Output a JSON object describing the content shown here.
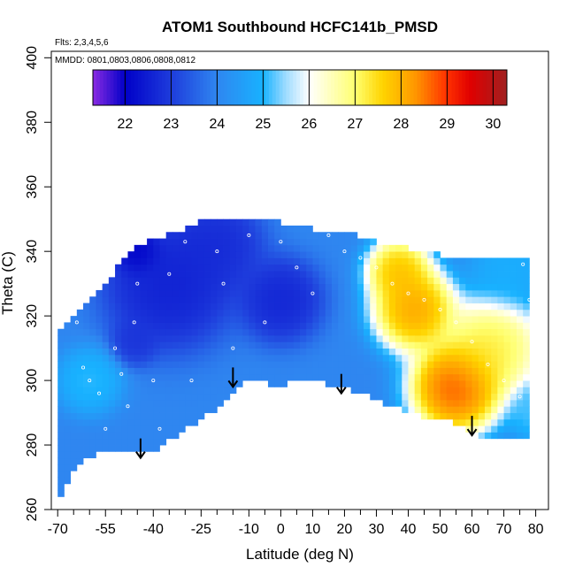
{
  "chart_data": {
    "type": "heatmap",
    "title": "ATOM1 Southbound HCFC141b_PMSD",
    "subtitle_flights": "Flts: 2,3,4,5,6",
    "subtitle_dates": "MMDD: 0801,0803,0806,0808,0812",
    "xlabel": "Latitude (deg N)",
    "ylabel": "Theta (C)",
    "xlim": [
      -72,
      84
    ],
    "ylim": [
      260,
      402
    ],
    "x_ticks": [
      -70,
      -55,
      -40,
      -25,
      -10,
      0,
      10,
      20,
      30,
      40,
      50,
      60,
      70,
      80
    ],
    "x_tick_labels": [
      "-70",
      "-55",
      "-40",
      "-25",
      "-10",
      "0",
      "10",
      "20",
      "30",
      "40",
      "50",
      "60",
      "70",
      "80"
    ],
    "x_minor_ticks": [
      -65,
      -60,
      -50,
      -45,
      -35,
      -30,
      -20,
      -15,
      -5,
      5,
      15,
      25,
      35,
      45,
      55,
      65,
      75
    ],
    "y_ticks": [
      260,
      280,
      300,
      320,
      340,
      360,
      380,
      400
    ],
    "y_tick_labels": [
      "260",
      "280",
      "300",
      "320",
      "340",
      "360",
      "380",
      "400"
    ],
    "colorbar": {
      "min": 21.3,
      "max": 30.3,
      "ticks": [
        22,
        23,
        24,
        25,
        26,
        27,
        28,
        29,
        30
      ],
      "tick_labels": [
        "22",
        "23",
        "24",
        "25",
        "26",
        "27",
        "28",
        "29",
        "30"
      ]
    },
    "color_stops": [
      {
        "v": 21.3,
        "c": "#8a2be2"
      },
      {
        "v": 22.0,
        "c": "#0000c8"
      },
      {
        "v": 23.0,
        "c": "#1e3cdc"
      },
      {
        "v": 24.0,
        "c": "#2f86f0"
      },
      {
        "v": 25.0,
        "c": "#18b2ff"
      },
      {
        "v": 25.5,
        "c": "#a0dcff"
      },
      {
        "v": 26.0,
        "c": "#ffffff"
      },
      {
        "v": 27.0,
        "c": "#ffff70"
      },
      {
        "v": 27.6,
        "c": "#ffd400"
      },
      {
        "v": 28.3,
        "c": "#ff9800"
      },
      {
        "v": 29.0,
        "c": "#ff3000"
      },
      {
        "v": 29.5,
        "c": "#e00000"
      },
      {
        "v": 30.3,
        "c": "#a02020"
      }
    ],
    "field_centers": [
      {
        "lat": -35,
        "theta": 330,
        "value": 22.4,
        "radius": 14
      },
      {
        "lat": -20,
        "theta": 342,
        "value": 22.6,
        "radius": 10
      },
      {
        "lat": 0,
        "theta": 325,
        "value": 22.5,
        "radius": 9
      },
      {
        "lat": -45,
        "theta": 340,
        "value": 21.8,
        "radius": 5
      },
      {
        "lat": -46,
        "theta": 312,
        "value": 22.8,
        "radius": 5
      },
      {
        "lat": -60,
        "theta": 300,
        "value": 25.2,
        "radius": 7
      },
      {
        "lat": 37,
        "theta": 334,
        "value": 28.2,
        "radius": 7
      },
      {
        "lat": 42,
        "theta": 322,
        "value": 28.6,
        "radius": 9
      },
      {
        "lat": 55,
        "theta": 298,
        "value": 29.3,
        "radius": 10
      },
      {
        "lat": 66,
        "theta": 310,
        "value": 27.6,
        "radius": 11
      },
      {
        "lat": 72,
        "theta": 335,
        "value": 25.0,
        "radius": 9
      },
      {
        "lat": 80,
        "theta": 290,
        "value": 25.3,
        "radius": 6
      }
    ],
    "field_default": 24.0,
    "region_top": [
      {
        "lat": -70,
        "theta": 315
      },
      {
        "lat": -65,
        "theta": 320
      },
      {
        "lat": -55,
        "theta": 330
      },
      {
        "lat": -48,
        "theta": 340
      },
      {
        "lat": -42,
        "theta": 343
      },
      {
        "lat": -35,
        "theta": 345
      },
      {
        "lat": -25,
        "theta": 349
      },
      {
        "lat": -10,
        "theta": 350
      },
      {
        "lat": 0,
        "theta": 349
      },
      {
        "lat": 10,
        "theta": 347
      },
      {
        "lat": 20,
        "theta": 346
      },
      {
        "lat": 30,
        "theta": 343
      },
      {
        "lat": 40,
        "theta": 341
      },
      {
        "lat": 55,
        "theta": 338
      },
      {
        "lat": 65,
        "theta": 338
      },
      {
        "lat": 78,
        "theta": 338
      }
    ],
    "region_bottom": [
      {
        "lat": -69,
        "theta": 264
      },
      {
        "lat": -63,
        "theta": 275
      },
      {
        "lat": -55,
        "theta": 278
      },
      {
        "lat": -48,
        "theta": 278
      },
      {
        "lat": -42,
        "theta": 277
      },
      {
        "lat": -33,
        "theta": 283
      },
      {
        "lat": -20,
        "theta": 291
      },
      {
        "lat": -12,
        "theta": 299
      },
      {
        "lat": -6,
        "theta": 300
      },
      {
        "lat": 0,
        "theta": 298
      },
      {
        "lat": 8,
        "theta": 301
      },
      {
        "lat": 15,
        "theta": 299
      },
      {
        "lat": 25,
        "theta": 296
      },
      {
        "lat": 35,
        "theta": 292
      },
      {
        "lat": 45,
        "theta": 289
      },
      {
        "lat": 55,
        "theta": 287
      },
      {
        "lat": 62,
        "theta": 283
      },
      {
        "lat": 78,
        "theta": 283
      }
    ],
    "arrows": [
      {
        "lat": -44,
        "theta": 276
      },
      {
        "lat": -15,
        "theta": 298
      },
      {
        "lat": 19,
        "theta": 296
      },
      {
        "lat": 60,
        "theta": 283
      }
    ],
    "sample_points": [
      {
        "lat": -64,
        "theta": 318
      },
      {
        "lat": -62,
        "theta": 304
      },
      {
        "lat": -60,
        "theta": 300
      },
      {
        "lat": -57,
        "theta": 296
      },
      {
        "lat": -55,
        "theta": 285
      },
      {
        "lat": -52,
        "theta": 310
      },
      {
        "lat": -50,
        "theta": 302
      },
      {
        "lat": -48,
        "theta": 292
      },
      {
        "lat": -46,
        "theta": 318
      },
      {
        "lat": -45,
        "theta": 330
      },
      {
        "lat": -40,
        "theta": 300
      },
      {
        "lat": -38,
        "theta": 285
      },
      {
        "lat": -35,
        "theta": 333
      },
      {
        "lat": -30,
        "theta": 343
      },
      {
        "lat": -28,
        "theta": 300
      },
      {
        "lat": -20,
        "theta": 340
      },
      {
        "lat": -18,
        "theta": 330
      },
      {
        "lat": -15,
        "theta": 310
      },
      {
        "lat": -10,
        "theta": 345
      },
      {
        "lat": -5,
        "theta": 318
      },
      {
        "lat": 0,
        "theta": 343
      },
      {
        "lat": 5,
        "theta": 335
      },
      {
        "lat": 10,
        "theta": 327
      },
      {
        "lat": 15,
        "theta": 345
      },
      {
        "lat": 20,
        "theta": 340
      },
      {
        "lat": 25,
        "theta": 338
      },
      {
        "lat": 30,
        "theta": 335
      },
      {
        "lat": 35,
        "theta": 330
      },
      {
        "lat": 40,
        "theta": 327
      },
      {
        "lat": 45,
        "theta": 325
      },
      {
        "lat": 50,
        "theta": 322
      },
      {
        "lat": 55,
        "theta": 318
      },
      {
        "lat": 60,
        "theta": 312
      },
      {
        "lat": 65,
        "theta": 305
      },
      {
        "lat": 70,
        "theta": 300
      },
      {
        "lat": 75,
        "theta": 295
      },
      {
        "lat": 78,
        "theta": 325
      },
      {
        "lat": 76,
        "theta": 336
      }
    ]
  }
}
